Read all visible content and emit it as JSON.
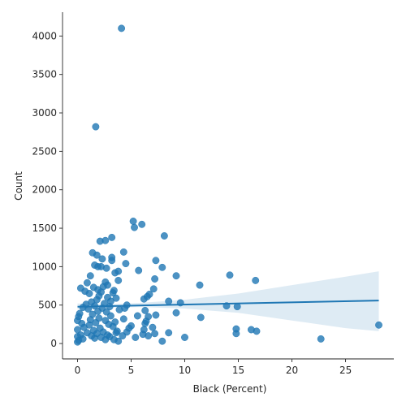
{
  "chart_data": {
    "type": "scatter",
    "xlabel": "Black (Percent)",
    "ylabel": "Count",
    "xlim": [
      -1.4,
      29.5
    ],
    "ylim": [
      -200,
      4310
    ],
    "xticks": [
      0,
      5,
      10,
      15,
      20,
      25
    ],
    "yticks": [
      0,
      500,
      1000,
      1500,
      2000,
      2500,
      3000,
      3500,
      4000
    ],
    "colors": {
      "points": "#1f77b4",
      "fit_line": "#1f77b4",
      "ci_band": "#1f77b4"
    },
    "regression": {
      "x_range": [
        0,
        28.1
      ],
      "intercept": 478,
      "slope": 2.9,
      "ci_lower": [
        [
          0,
          440
        ],
        [
          3,
          466
        ],
        [
          6,
          475
        ],
        [
          10,
          455
        ],
        [
          15,
          400
        ],
        [
          20,
          300
        ],
        [
          25,
          200
        ],
        [
          28.1,
          160
        ]
      ],
      "ci_upper": [
        [
          0,
          520
        ],
        [
          3,
          510
        ],
        [
          6,
          530
        ],
        [
          10,
          570
        ],
        [
          15,
          650
        ],
        [
          20,
          760
        ],
        [
          25,
          870
        ],
        [
          28.1,
          940
        ]
      ]
    },
    "points": [
      [
        4.1,
        4100
      ],
      [
        1.7,
        2820
      ],
      [
        5.2,
        1590
      ],
      [
        6.0,
        1550
      ],
      [
        5.3,
        1510
      ],
      [
        8.1,
        1400
      ],
      [
        3.2,
        1380
      ],
      [
        2.6,
        1340
      ],
      [
        2.1,
        1330
      ],
      [
        4.3,
        1190
      ],
      [
        1.4,
        1180
      ],
      [
        1.8,
        1150
      ],
      [
        3.2,
        1120
      ],
      [
        7.3,
        1080
      ],
      [
        2.3,
        1100
      ],
      [
        3.2,
        1080
      ],
      [
        4.5,
        1040
      ],
      [
        1.6,
        1020
      ],
      [
        1.9,
        1000
      ],
      [
        2.2,
        1000
      ],
      [
        7.9,
        990
      ],
      [
        2.7,
        980
      ],
      [
        5.7,
        950
      ],
      [
        3.8,
        940
      ],
      [
        3.5,
        920
      ],
      [
        14.2,
        890
      ],
      [
        9.2,
        880
      ],
      [
        1.2,
        880
      ],
      [
        7.2,
        840
      ],
      [
        16.6,
        820
      ],
      [
        3.8,
        820
      ],
      [
        2.6,
        800
      ],
      [
        0.9,
        790
      ],
      [
        2.8,
        760
      ],
      [
        11.4,
        760
      ],
      [
        2.4,
        740
      ],
      [
        1.5,
        730
      ],
      [
        0.3,
        720
      ],
      [
        7.1,
        710
      ],
      [
        1.9,
        700
      ],
      [
        3.4,
        690
      ],
      [
        0.7,
        680
      ],
      [
        2.2,
        670
      ],
      [
        3.3,
        660
      ],
      [
        1.1,
        650
      ],
      [
        6.7,
        640
      ],
      [
        2.0,
        620
      ],
      [
        6.5,
        610
      ],
      [
        2.8,
        600
      ],
      [
        3.6,
        590
      ],
      [
        6.2,
        580
      ],
      [
        1.8,
        570
      ],
      [
        8.5,
        550
      ],
      [
        3.1,
        550
      ],
      [
        1.3,
        540
      ],
      [
        9.6,
        530
      ],
      [
        2.5,
        520
      ],
      [
        0.8,
        510
      ],
      [
        4.6,
        500
      ],
      [
        1.6,
        490
      ],
      [
        13.9,
        490
      ],
      [
        3.0,
        480
      ],
      [
        14.9,
        480
      ],
      [
        0.5,
        470
      ],
      [
        2.3,
        460
      ],
      [
        4.4,
        460
      ],
      [
        1.0,
        450
      ],
      [
        3.9,
        440
      ],
      [
        6.3,
        430
      ],
      [
        1.9,
        420
      ],
      [
        2.7,
        410
      ],
      [
        9.2,
        400
      ],
      [
        0.2,
        390
      ],
      [
        1.4,
        380
      ],
      [
        7.3,
        370
      ],
      [
        3.1,
        360
      ],
      [
        5.6,
        360
      ],
      [
        0.1,
        350
      ],
      [
        6.6,
        350
      ],
      [
        11.5,
        340
      ],
      [
        2.0,
        330
      ],
      [
        4.3,
        320
      ],
      [
        1.2,
        310
      ],
      [
        0.0,
        300
      ],
      [
        2.6,
        300
      ],
      [
        6.4,
        290
      ],
      [
        3.5,
        280
      ],
      [
        1.7,
        270
      ],
      [
        0.4,
        260
      ],
      [
        6.3,
        260
      ],
      [
        2.9,
        250
      ],
      [
        28.1,
        240
      ],
      [
        1.1,
        240
      ],
      [
        5.0,
        230
      ],
      [
        3.3,
        220
      ],
      [
        0.6,
        210
      ],
      [
        7.0,
        210
      ],
      [
        2.1,
        200
      ],
      [
        4.8,
        200
      ],
      [
        14.8,
        190
      ],
      [
        16.2,
        180
      ],
      [
        0.0,
        180
      ],
      [
        6.2,
        180
      ],
      [
        1.5,
        170
      ],
      [
        3.7,
        160
      ],
      [
        16.7,
        160
      ],
      [
        2.4,
        150
      ],
      [
        4.6,
        150
      ],
      [
        0.9,
        140
      ],
      [
        8.5,
        140
      ],
      [
        3.6,
        140
      ],
      [
        7.2,
        130
      ],
      [
        14.8,
        130
      ],
      [
        1.8,
        130
      ],
      [
        6.1,
        120
      ],
      [
        0.3,
        110
      ],
      [
        2.8,
        110
      ],
      [
        4.2,
        100
      ],
      [
        1.3,
        100
      ],
      [
        6.6,
        100
      ],
      [
        3.0,
        90
      ],
      [
        0.0,
        90
      ],
      [
        10.0,
        80
      ],
      [
        2.2,
        80
      ],
      [
        5.4,
        80
      ],
      [
        1.6,
        70
      ],
      [
        22.7,
        60
      ],
      [
        0.5,
        60
      ],
      [
        3.4,
        50
      ],
      [
        2.6,
        50
      ],
      [
        0.1,
        40
      ],
      [
        7.9,
        30
      ],
      [
        3.8,
        30
      ],
      [
        0.0,
        20
      ]
    ]
  }
}
